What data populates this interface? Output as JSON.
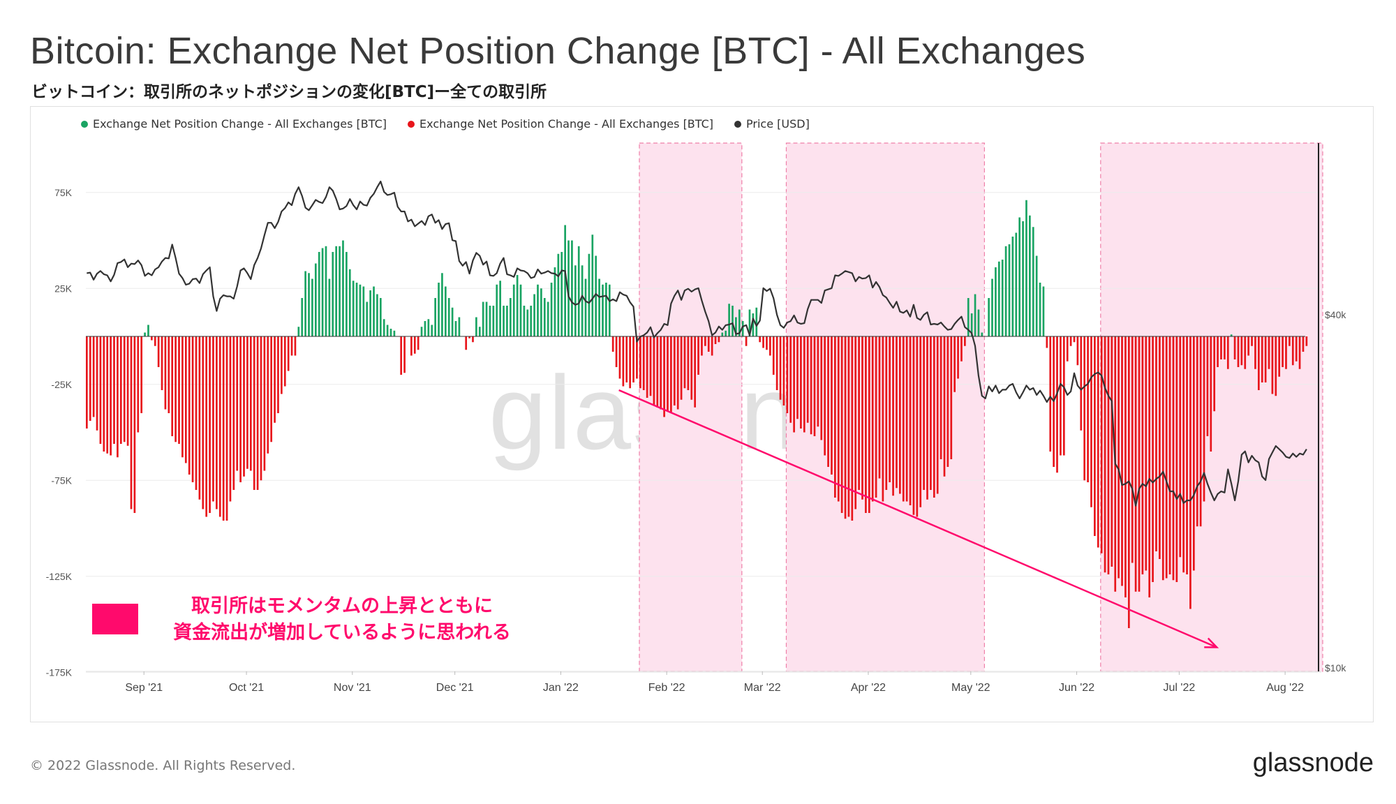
{
  "title": "Bitcoin: Exchange Net Position Change [BTC] - All Exchanges",
  "subtitle": "ビットコイン：取引所のネットポジションの変化[BTC]ー全ての取引所",
  "legend": [
    {
      "label": "Exchange Net Position Change - All Exchanges [BTC]",
      "color": "#1aa463"
    },
    {
      "label": "Exchange Net Position Change - All Exchanges [BTC]",
      "color": "#e8151b"
    },
    {
      "label": "Price [USD]",
      "color": "#333333"
    }
  ],
  "callout": {
    "line1": "取引所はモメンタムの上昇とともに",
    "line2": "資金流出が増加しているように思われる",
    "color": "#ff0a6c"
  },
  "watermark": "glassnode",
  "footer": "© 2022 Glassnode. All Rights Reserved.",
  "brand": "glassnode",
  "chart_data": {
    "type": "bar",
    "x_ticks": [
      "Sep '21",
      "Oct '21",
      "Nov '21",
      "Dec '21",
      "Jan '22",
      "Feb '22",
      "Mar '22",
      "Apr '22",
      "May '22",
      "Jun '22",
      "Jul '22",
      "Aug '22"
    ],
    "y_ticks": [
      "75K",
      "25K",
      "-25K",
      "-75K",
      "-125K",
      "-175K"
    ],
    "ylim": [
      -175000,
      100000
    ],
    "y2_ticks": [
      "$40k",
      "$10k"
    ],
    "y2_scale": "log",
    "highlight_periods": [
      {
        "start": "2022-01-24",
        "end": "2022-02-23"
      },
      {
        "start": "2022-03-08",
        "end": "2022-05-05"
      },
      {
        "start": "2022-06-08",
        "end": "2022-08-12"
      }
    ],
    "trend_arrow": {
      "from": {
        "date": "2022-01-18",
        "value": -28000
      },
      "to": {
        "date": "2022-07-12",
        "value": -162000
      }
    },
    "series": [
      {
        "name": "Exchange Net Position Change - All Exchanges [BTC]",
        "color_positive": "#1aa463",
        "color_negative": "#e8151b",
        "start_date": "2021-08-15",
        "values": [
          -48000,
          -44000,
          -42000,
          -49000,
          -56000,
          -60000,
          -61000,
          -62000,
          -56000,
          -63000,
          -56000,
          -55000,
          -57000,
          -90000,
          -92000,
          -50000,
          -40000,
          2000,
          6000,
          -2000,
          -5000,
          -16000,
          -28000,
          -38000,
          -40000,
          -52000,
          -55000,
          -56000,
          -63000,
          -66000,
          -72000,
          -76000,
          -80000,
          -85000,
          -90000,
          -94000,
          -92000,
          -86000,
          -90000,
          -94000,
          -96000,
          -96000,
          -86000,
          -80000,
          -70000,
          -76000,
          -73000,
          -69000,
          -70000,
          -80000,
          -80000,
          -75000,
          -70000,
          -61000,
          -55000,
          -45000,
          -40000,
          -30000,
          -26000,
          -18000,
          -10000,
          -10000,
          5000,
          20000,
          34000,
          33000,
          30000,
          38000,
          44000,
          46000,
          47000,
          30000,
          44000,
          47000,
          47000,
          50000,
          44000,
          35000,
          29000,
          28000,
          27000,
          26000,
          18000,
          24000,
          26000,
          22000,
          20000,
          9000,
          6000,
          4000,
          3000,
          0,
          -20000,
          -19000,
          0,
          -10000,
          -9000,
          -7000,
          5000,
          8000,
          9000,
          6000,
          20000,
          28000,
          33000,
          26000,
          20000,
          15000,
          8000,
          10000,
          0,
          -7000,
          -1000,
          -3000,
          10000,
          5000,
          18000,
          18000,
          16000,
          16000,
          27000,
          29000,
          16000,
          16000,
          20000,
          27000,
          32000,
          27000,
          16000,
          14000,
          16000,
          22000,
          27000,
          25000,
          20000,
          18000,
          28000,
          36000,
          43000,
          44000,
          58000,
          50000,
          50000,
          37000,
          47000,
          37000,
          30000,
          43000,
          53000,
          42000,
          30000,
          27000,
          28000,
          27000,
          -8000,
          -16000,
          -22000,
          -26000,
          -24000,
          -27000,
          -24000,
          -22000,
          -27000,
          -28000,
          -32000,
          -31000,
          -36000,
          -37000,
          -38000,
          -42000,
          -39000,
          -40000,
          -36000,
          -38000,
          -33000,
          -27000,
          -28000,
          -33000,
          -37000,
          -20000,
          -10000,
          -5000,
          -8000,
          -10000,
          -4000,
          -3000,
          2000,
          3000,
          17000,
          16000,
          10000,
          14000,
          8000,
          -5000,
          14000,
          12000,
          15000,
          -3000,
          -6000,
          -7000,
          -10000,
          -20000,
          -28000,
          -33000,
          -36000,
          -40000,
          -45000,
          -50000,
          -43000,
          -48000,
          -50000,
          -45000,
          -51000,
          -52000,
          -47000,
          -54000,
          -62000,
          -68000,
          -72000,
          -84000,
          -86000,
          -92000,
          -95000,
          -94000,
          -96000,
          -90000,
          -80000,
          -85000,
          -92000,
          -92000,
          -86000,
          -84000,
          -74000,
          -86000,
          -80000,
          -76000,
          -83000,
          -79000,
          -82000,
          -86000,
          -86000,
          -88000,
          -93000,
          -94000,
          -89000,
          -80000,
          -85000,
          -80000,
          -84000,
          -82000,
          -64000,
          -73000,
          -68000,
          -64000,
          -29000,
          -22000,
          -13000,
          -5000,
          20000,
          12000,
          22000,
          14000,
          2000,
          0,
          20000,
          30000,
          36000,
          39000,
          40000,
          47000,
          48000,
          52000,
          54000,
          62000,
          60000,
          71000,
          63000,
          57000,
          42000,
          28000,
          26000,
          -6000,
          -60000,
          -68000,
          -71000,
          -62000,
          -62000,
          -13000,
          -5000,
          -3000,
          -15000,
          -49000,
          -75000,
          -76000,
          -89000,
          -104000,
          -110000,
          -113000,
          -123000,
          -124000,
          -120000,
          -133000,
          -126000,
          -130000,
          -136000,
          -152000,
          -118000,
          -133000,
          -133000,
          -124000,
          -122000,
          -136000,
          -128000,
          -112000,
          -116000,
          -127000,
          -126000,
          -124000,
          -127000,
          -128000,
          -115000,
          -123000,
          -124000,
          -142000,
          -122000,
          -99000,
          -99000,
          -86000,
          -52000,
          -60000,
          -39000,
          -16000,
          -12000,
          -12000,
          -17000,
          1000,
          -12000,
          -16000,
          -15000,
          -17000,
          -10000,
          -5000,
          -17000,
          -28000,
          -24000,
          -24000,
          -17000,
          -30000,
          -31000,
          -21000,
          -16000,
          -17000,
          -5000,
          -15000,
          -13000,
          -17000,
          -8000,
          -5000
        ],
        "colors": {
          "positive": "#1aa463",
          "negative": "#e8151b"
        }
      },
      {
        "name": "Price [USD]",
        "axis": "right",
        "color": "#333333",
        "start_date": "2021-08-15",
        "values": [
          47100,
          47200,
          45900,
          47000,
          47500,
          46900,
          46700,
          45600,
          46800,
          49000,
          49200,
          49700,
          48200,
          48900,
          48800,
          49500,
          48600,
          46600,
          47100,
          46700,
          47800,
          48200,
          49300,
          50000,
          49900,
          52700,
          50000,
          47000,
          46200,
          45000,
          45200,
          46000,
          46100,
          45300,
          46900,
          47600,
          48200,
          43000,
          40600,
          42600,
          43200,
          43000,
          43000,
          42600,
          44700,
          47600,
          48000,
          47100,
          46000,
          48600,
          50000,
          51900,
          54700,
          57400,
          57400,
          56200,
          57600,
          60000,
          60800,
          62200,
          61500,
          64300,
          66000,
          63800,
          60900,
          60300,
          61500,
          62800,
          62300,
          62000,
          63500,
          66000,
          65100,
          63000,
          60500,
          60700,
          61300,
          63000,
          61500,
          60500,
          62400,
          61600,
          61400,
          63300,
          64300,
          66000,
          67500,
          64800,
          64000,
          64200,
          64600,
          61100,
          60000,
          60000,
          57700,
          58100,
          56600,
          57200,
          57800,
          56900,
          58900,
          59300,
          57400,
          58000,
          56000,
          57100,
          57300,
          53600,
          53400,
          49400,
          48500,
          49200,
          47000,
          49500,
          51000,
          50400,
          48700,
          49300,
          46700,
          46600,
          47100,
          48900,
          50000,
          46900,
          46700,
          46400,
          48000,
          47600,
          47500,
          47100,
          46200,
          46400,
          47800,
          47000,
          47200,
          47500,
          47100,
          47000,
          46500,
          47600,
          47500,
          43000,
          42000,
          41600,
          41800,
          43100,
          42200,
          41900,
          42600,
          43400,
          42900,
          43000,
          43100,
          42200,
          42500,
          42200,
          43700,
          43300,
          43100,
          42000,
          41300,
          36000,
          36700,
          36900,
          37300,
          38100,
          36600,
          37200,
          37700,
          38600,
          38400,
          41800,
          43100,
          44000,
          42400,
          44000,
          44300,
          43800,
          44200,
          44400,
          42300,
          40500,
          39000,
          36900,
          37300,
          38200,
          37700,
          38400,
          38500,
          38700,
          37100,
          37200,
          38200,
          38400,
          36900,
          39400,
          38300,
          39100,
          44400,
          43900,
          44300,
          42700,
          40000,
          38400,
          38000,
          38800,
          39000,
          39900,
          38800,
          38600,
          38700,
          40900,
          42400,
          42400,
          42400,
          41900,
          44000,
          44200,
          44400,
          46700,
          46600,
          47000,
          47500,
          47300,
          47100,
          45600,
          46400,
          46100,
          46200,
          46700,
          44500,
          45500,
          44600,
          43200,
          42800,
          41900,
          41100,
          42100,
          40500,
          40300,
          40700,
          39700,
          41600,
          39500,
          39200,
          40000,
          40400,
          38500,
          38600,
          38500,
          38800,
          38200,
          37700,
          37800,
          38600,
          39200,
          39700,
          38100,
          37700,
          37200,
          35400,
          31500,
          29100,
          28800,
          30200,
          29600,
          30300,
          29400,
          29800,
          29800,
          30300,
          30500,
          29500,
          28800,
          29500,
          30300,
          29800,
          30000,
          29200,
          29700,
          29100,
          28400,
          29000,
          28500,
          29400,
          30500,
          30100,
          29200,
          29600,
          31800,
          30300,
          29800,
          30200,
          30500,
          31300,
          31700,
          31900,
          31500,
          30000,
          29100,
          28500,
          22300,
          21800,
          20500,
          20600,
          20800,
          20200,
          18900,
          20200,
          20600,
          20400,
          21000,
          20700,
          21000,
          21200,
          21600,
          20800,
          20000,
          20000,
          19400,
          19800,
          19100,
          19300,
          19300,
          19700,
          20400,
          20800,
          21500,
          20600,
          19900,
          19300,
          19800,
          20000,
          19900,
          21800,
          20600,
          19300,
          20800,
          23100,
          23400,
          22400,
          23000,
          22600,
          22400,
          21200,
          20900,
          22700,
          23300,
          23900,
          23600,
          23300,
          22900,
          22800,
          23200,
          22900,
          23200,
          23100,
          23600
        ]
      }
    ]
  }
}
